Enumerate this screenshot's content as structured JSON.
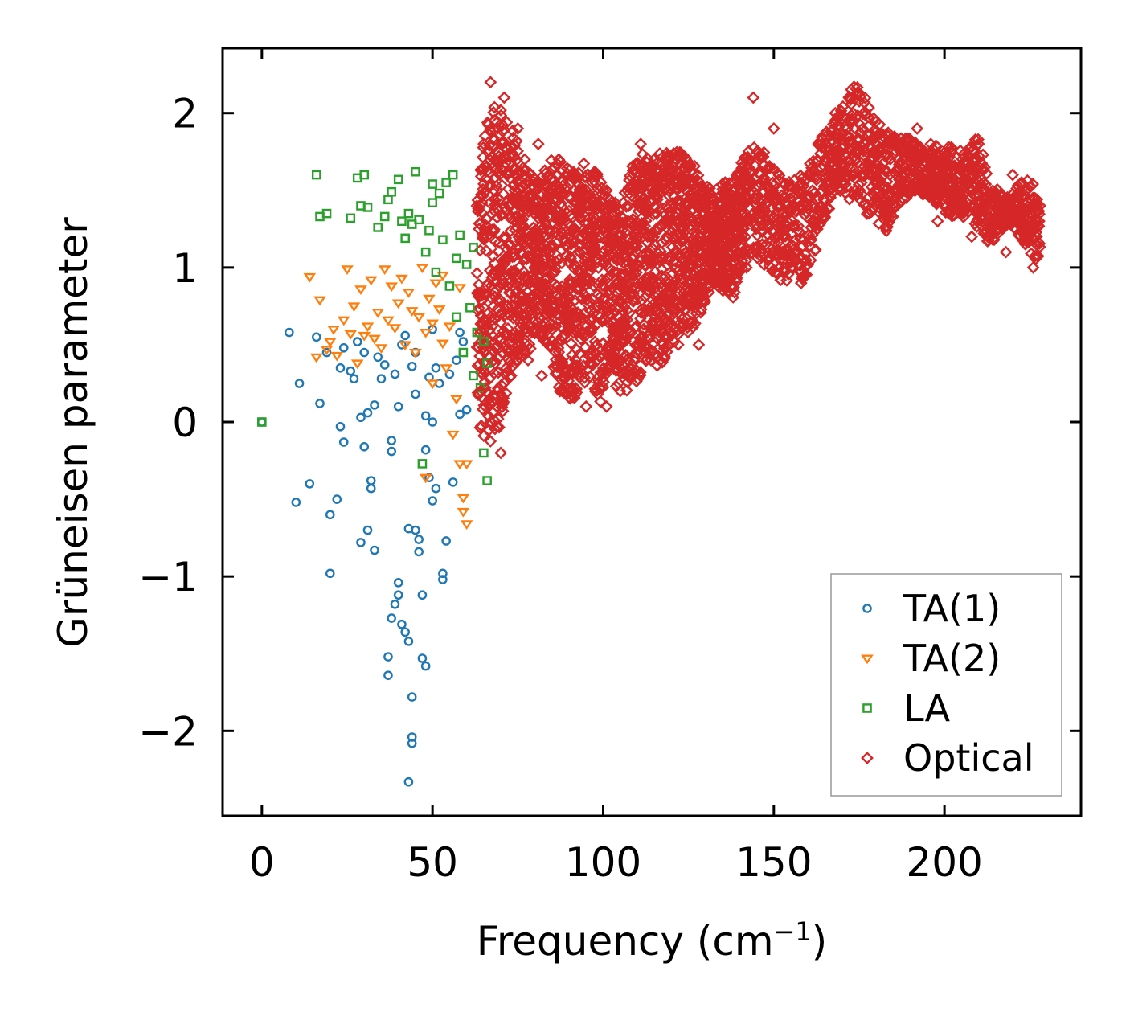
{
  "chart_data": {
    "type": "scatter",
    "title": "",
    "xlabel": "Frequency (cm",
    "xlabel_sup": "−1",
    "xlabel_close": ")",
    "ylabel": "Grüneisen parameter",
    "xlim": [
      -11.5,
      240
    ],
    "ylim": [
      -2.55,
      2.42
    ],
    "xticks": [
      0,
      50,
      100,
      150,
      200
    ],
    "xtick_labels": [
      "0",
      "50",
      "100",
      "150",
      "200"
    ],
    "yticks": [
      2,
      1,
      0,
      -1,
      -2
    ],
    "ytick_labels": [
      "2",
      "1",
      "0",
      "−1",
      "−2"
    ],
    "grid": false,
    "legend_position": "lower-right",
    "series": [
      {
        "name": "TA(1)",
        "marker": "circle",
        "color": "#1f77b4",
        "x": [
          0,
          8,
          10,
          11,
          14,
          16,
          17,
          19,
          20,
          20,
          22,
          23,
          23,
          24,
          24,
          26,
          27,
          28,
          29,
          29,
          30,
          30,
          31,
          31,
          32,
          32,
          33,
          33,
          34,
          35,
          36,
          37,
          37,
          38,
          38,
          38,
          39,
          39,
          40,
          40,
          40,
          41,
          41,
          42,
          42,
          43,
          43,
          43,
          44,
          44,
          44,
          44,
          45,
          45,
          45,
          46,
          46,
          47,
          47,
          48,
          48,
          48,
          49,
          49,
          50,
          50,
          50,
          51,
          51,
          52,
          53,
          53,
          54,
          55,
          56,
          57,
          58,
          58,
          59,
          60
        ],
        "y": [
          0.0,
          0.58,
          -0.52,
          0.25,
          -0.4,
          0.55,
          0.12,
          0.45,
          -0.6,
          -0.98,
          -0.5,
          -0.03,
          0.35,
          -0.13,
          0.48,
          0.33,
          0.28,
          0.52,
          -0.78,
          0.03,
          -0.16,
          0.45,
          0.06,
          -0.7,
          -0.38,
          -0.43,
          0.11,
          -0.83,
          0.42,
          0.28,
          0.37,
          -1.52,
          -1.64,
          -0.12,
          -1.27,
          -0.19,
          0.31,
          -1.18,
          -1.12,
          0.1,
          -1.04,
          0.5,
          -1.31,
          -1.36,
          0.56,
          -2.33,
          -1.42,
          -0.69,
          0.36,
          -1.78,
          -2.08,
          -2.04,
          -0.7,
          0.45,
          0.18,
          -0.84,
          -0.76,
          -1.53,
          -1.12,
          -1.58,
          0.04,
          -0.18,
          -0.36,
          0.29,
          -0.51,
          0.6,
          0.0,
          0.35,
          -0.43,
          0.25,
          -0.98,
          -1.02,
          -0.77,
          0.31,
          -0.39,
          0.4,
          0.05,
          0.58,
          0.52,
          0.08
        ]
      },
      {
        "name": "TA(2)",
        "marker": "triangle-down",
        "color": "#ff7f0e",
        "x": [
          14,
          16,
          17,
          19,
          20,
          21,
          22,
          24,
          25,
          26,
          27,
          28,
          29,
          30,
          31,
          32,
          33,
          34,
          35,
          36,
          37,
          38,
          39,
          40,
          41,
          42,
          43,
          44,
          45,
          46,
          47,
          48,
          48,
          49,
          50,
          50,
          51,
          52,
          53,
          53,
          54,
          55,
          56,
          57,
          58,
          58,
          59,
          59,
          60,
          60
        ],
        "y": [
          0.94,
          0.42,
          0.79,
          0.47,
          0.52,
          0.6,
          0.43,
          0.66,
          0.99,
          0.57,
          0.75,
          0.38,
          0.86,
          0.56,
          0.62,
          0.92,
          0.54,
          0.71,
          0.48,
          0.99,
          0.66,
          0.88,
          0.61,
          0.77,
          0.93,
          0.5,
          0.84,
          0.72,
          0.45,
          0.68,
          1.0,
          0.58,
          -0.36,
          0.8,
          0.25,
          0.64,
          0.9,
          0.73,
          0.51,
          0.95,
          0.35,
          0.62,
          -0.08,
          0.15,
          -0.27,
          0.87,
          -0.49,
          -0.58,
          -0.66,
          -0.27
        ]
      },
      {
        "name": "LA",
        "marker": "square",
        "color": "#2ca02c",
        "x": [
          0,
          16,
          17,
          19,
          26,
          28,
          29,
          30,
          31,
          34,
          36,
          37,
          38,
          40,
          41,
          42,
          43,
          44,
          45,
          46,
          47,
          48,
          49,
          50,
          50,
          51,
          52,
          53,
          54,
          55,
          56,
          57,
          57,
          58,
          59,
          60,
          61,
          62,
          62,
          63,
          64,
          65,
          65,
          66,
          66
        ],
        "y": [
          0.0,
          1.6,
          1.33,
          1.35,
          1.32,
          1.58,
          1.4,
          1.6,
          1.39,
          1.26,
          1.33,
          1.44,
          1.49,
          1.57,
          1.3,
          1.19,
          1.35,
          1.28,
          1.62,
          1.31,
          -0.27,
          1.1,
          1.24,
          1.54,
          1.42,
          0.97,
          1.48,
          1.18,
          1.55,
          0.88,
          1.6,
          1.06,
          0.68,
          1.21,
          0.45,
          1.02,
          0.74,
          1.13,
          0.3,
          0.58,
          0.22,
          -0.2,
          0.52,
          0.38,
          -0.38
        ]
      },
      {
        "name": "Optical",
        "marker": "diamond",
        "color": "#d62728",
        "x": [
          63,
          64,
          65,
          65,
          66,
          67,
          67,
          68,
          68,
          69,
          70,
          70,
          71,
          72,
          72,
          73,
          74,
          75,
          75,
          76,
          77,
          78,
          79,
          80,
          81,
          82,
          83,
          84,
          85,
          86,
          87,
          88,
          89,
          90,
          91,
          92,
          93,
          94,
          95,
          96,
          97,
          98,
          99,
          100,
          101,
          102,
          103,
          104,
          105,
          106,
          107,
          108,
          109,
          110,
          111,
          112,
          113,
          114,
          115,
          116,
          117,
          118,
          119,
          120,
          121,
          122,
          123,
          124,
          125,
          126,
          127,
          128,
          129,
          130,
          132,
          134,
          136,
          138,
          140,
          142,
          144,
          146,
          148,
          150,
          152,
          154,
          156,
          158,
          160,
          162,
          164,
          166,
          168,
          170,
          172,
          174,
          176,
          178,
          180,
          182,
          184,
          186,
          188,
          190,
          192,
          194,
          196,
          198,
          200,
          202,
          204,
          206,
          208,
          210,
          212,
          214,
          216,
          218,
          220,
          222,
          224,
          226,
          227,
          228
        ],
        "y": [
          1.4,
          0.2,
          1.8,
          0.6,
          1.2,
          0.0,
          2.2,
          1.5,
          0.4,
          1.9,
          1.0,
          -0.2,
          2.1,
          0.7,
          1.6,
          0.3,
          1.3,
          1.9,
          0.5,
          1.1,
          1.7,
          0.4,
          1.4,
          0.9,
          1.8,
          0.3,
          1.2,
          1.5,
          0.6,
          1.0,
          1.7,
          0.2,
          1.3,
          0.8,
          1.6,
          0.4,
          1.1,
          1.5,
          0.1,
          0.9,
          1.4,
          0.5,
          1.2,
          0.8,
          0.1,
          1.3,
          0.6,
          1.1,
          0.2,
          0.9,
          1.5,
          0.3,
          1.0,
          0.5,
          1.8,
          0.7,
          1.2,
          0.4,
          1.5,
          0.9,
          0.6,
          1.3,
          1.7,
          0.8,
          1.1,
          0.5,
          1.6,
          1.0,
          1.4,
          0.7,
          1.2,
          0.5,
          1.5,
          1.0,
          1.3,
          0.9,
          1.5,
          1.2,
          1.4,
          1.0,
          2.1,
          1.6,
          1.3,
          1.9,
          1.5,
          1.1,
          1.4,
          0.9,
          1.6,
          1.3,
          1.8,
          1.5,
          2.0,
          1.7,
          2.1,
          1.5,
          1.9,
          1.7,
          1.4,
          1.85,
          1.6,
          1.8,
          1.7,
          1.5,
          1.9,
          1.6,
          1.8,
          1.3,
          1.7,
          1.5,
          1.4,
          1.6,
          1.2,
          1.8,
          1.5,
          1.3,
          1.4,
          1.1,
          1.6,
          1.3,
          1.5,
          1.0,
          1.2,
          1.4
        ]
      }
    ]
  },
  "optical_band": {
    "x": [
      63,
      66,
      69,
      72,
      75,
      78,
      81,
      84,
      87,
      90,
      93,
      96,
      99,
      102,
      105,
      108,
      111,
      114,
      117,
      120,
      123,
      126,
      129,
      132,
      135,
      138,
      141,
      144,
      147,
      150,
      153,
      156,
      159,
      162,
      165,
      168,
      171,
      174,
      177,
      180,
      183,
      186,
      189,
      192,
      195,
      198,
      201,
      204,
      207,
      210,
      213,
      216,
      219,
      222,
      225,
      228
    ],
    "low": [
      0.0,
      -0.15,
      -0.1,
      0.2,
      0.4,
      0.45,
      0.55,
      0.5,
      0.2,
      0.15,
      0.15,
      0.3,
      0.1,
      0.35,
      0.15,
      0.2,
      0.3,
      0.45,
      0.3,
      0.5,
      0.55,
      0.6,
      0.7,
      0.9,
      0.85,
      0.8,
      1.0,
      1.1,
      1.0,
      0.95,
      0.9,
      0.95,
      0.9,
      1.1,
      1.3,
      1.5,
      1.45,
      1.4,
      1.35,
      1.3,
      1.2,
      1.4,
      1.45,
      1.5,
      1.45,
      1.4,
      1.3,
      1.35,
      1.3,
      1.25,
      1.15,
      1.2,
      1.3,
      1.2,
      1.05,
      1.05
    ],
    "high": [
      1.5,
      1.95,
      2.1,
      2.0,
      1.8,
      1.65,
      1.6,
      1.7,
      1.7,
      1.65,
      1.7,
      1.65,
      1.6,
      1.45,
      1.4,
      1.65,
      1.75,
      1.7,
      1.75,
      1.75,
      1.75,
      1.7,
      1.55,
      1.5,
      1.55,
      1.6,
      1.7,
      1.8,
      1.75,
      1.65,
      1.55,
      1.6,
      1.6,
      1.75,
      1.9,
      1.95,
      2.1,
      2.2,
      2.1,
      1.95,
      1.9,
      1.85,
      1.85,
      1.8,
      1.75,
      1.8,
      1.8,
      1.75,
      1.8,
      1.85,
      1.6,
      1.5,
      1.45,
      1.55,
      1.6,
      1.4
    ]
  }
}
